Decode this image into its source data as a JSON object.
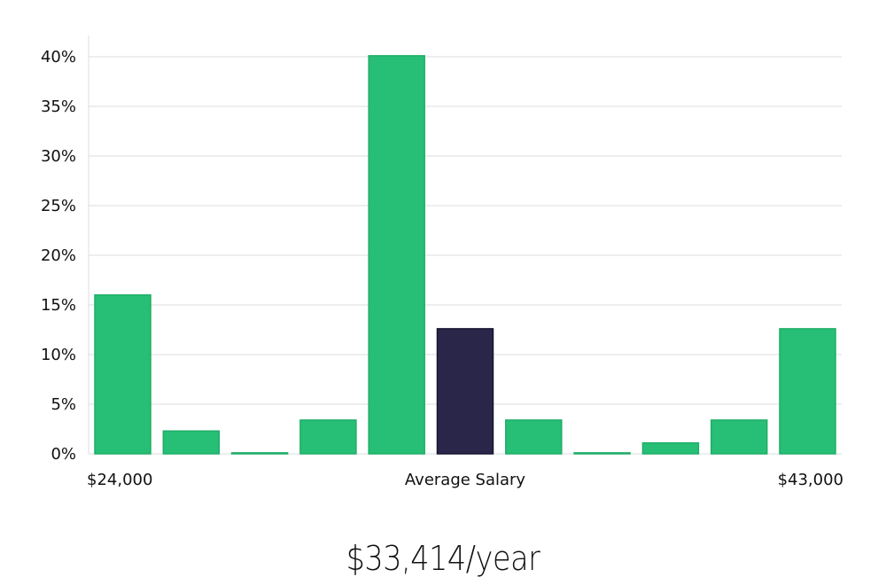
{
  "chart_data": {
    "type": "bar",
    "title": "",
    "xlabel": "Average Salary",
    "ylabel": "",
    "x_min_label": "$24,000",
    "x_max_label": "$43,000",
    "values": [
      16,
      2.3,
      0.1,
      3.4,
      40.1,
      12.6,
      3.4,
      0.1,
      1.1,
      3.4,
      12.6
    ],
    "highlight_index": 5,
    "ylim": [
      0,
      42
    ],
    "yticks": [
      0,
      5,
      10,
      15,
      20,
      25,
      30,
      35,
      40
    ],
    "ytick_labels": [
      "0%",
      "5%",
      "10%",
      "15%",
      "20%",
      "25%",
      "30%",
      "35%",
      "40%"
    ],
    "grid": true,
    "colors": {
      "bar": "#27be75",
      "bar_border": "#1fae68",
      "highlight": "#29264a",
      "highlight_border": "#171530"
    }
  },
  "summary": {
    "salary_text": "$33,414/year"
  }
}
